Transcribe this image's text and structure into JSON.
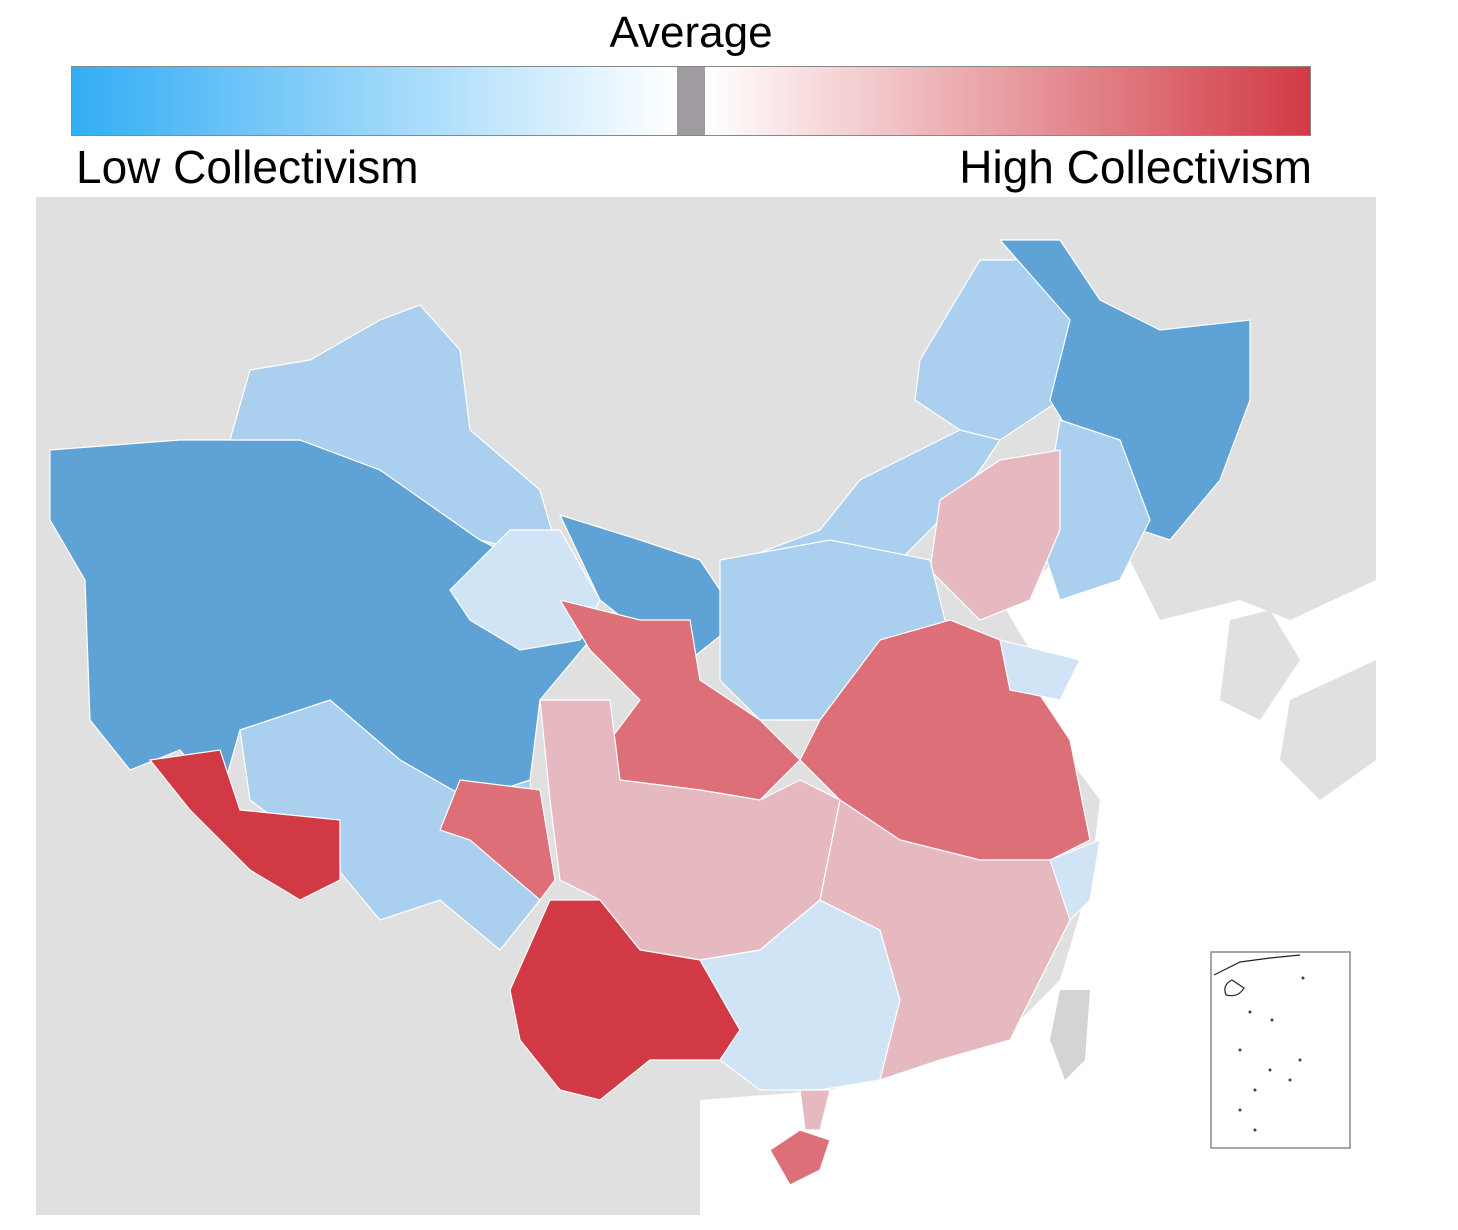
{
  "legend": {
    "center_label": "Average",
    "low_label": "Low Collectivism",
    "high_label": "High Collectivism",
    "colors": {
      "low": "#33adf5",
      "average": "#a09ba0",
      "high": "#d13a44"
    }
  },
  "map": {
    "land_color": "#e0e0e0",
    "sea_color": "#ffffff",
    "border_color": "#ffffff",
    "level_colors": {
      "-3": "#5fa3d6",
      "-2": "#aacfef",
      "-1": "#d0e4f6",
      "1": "#e6b9c0",
      "2": "#dc6f78",
      "3": "#d13a44"
    },
    "region_levels": [
      -3,
      -2,
      -2,
      3,
      -1,
      -3,
      -2,
      -2,
      -3,
      -2,
      1,
      -2,
      2,
      -1,
      2,
      1,
      2,
      3,
      -1,
      1,
      -1,
      2,
      1
    ],
    "inset": "south-china-sea"
  }
}
